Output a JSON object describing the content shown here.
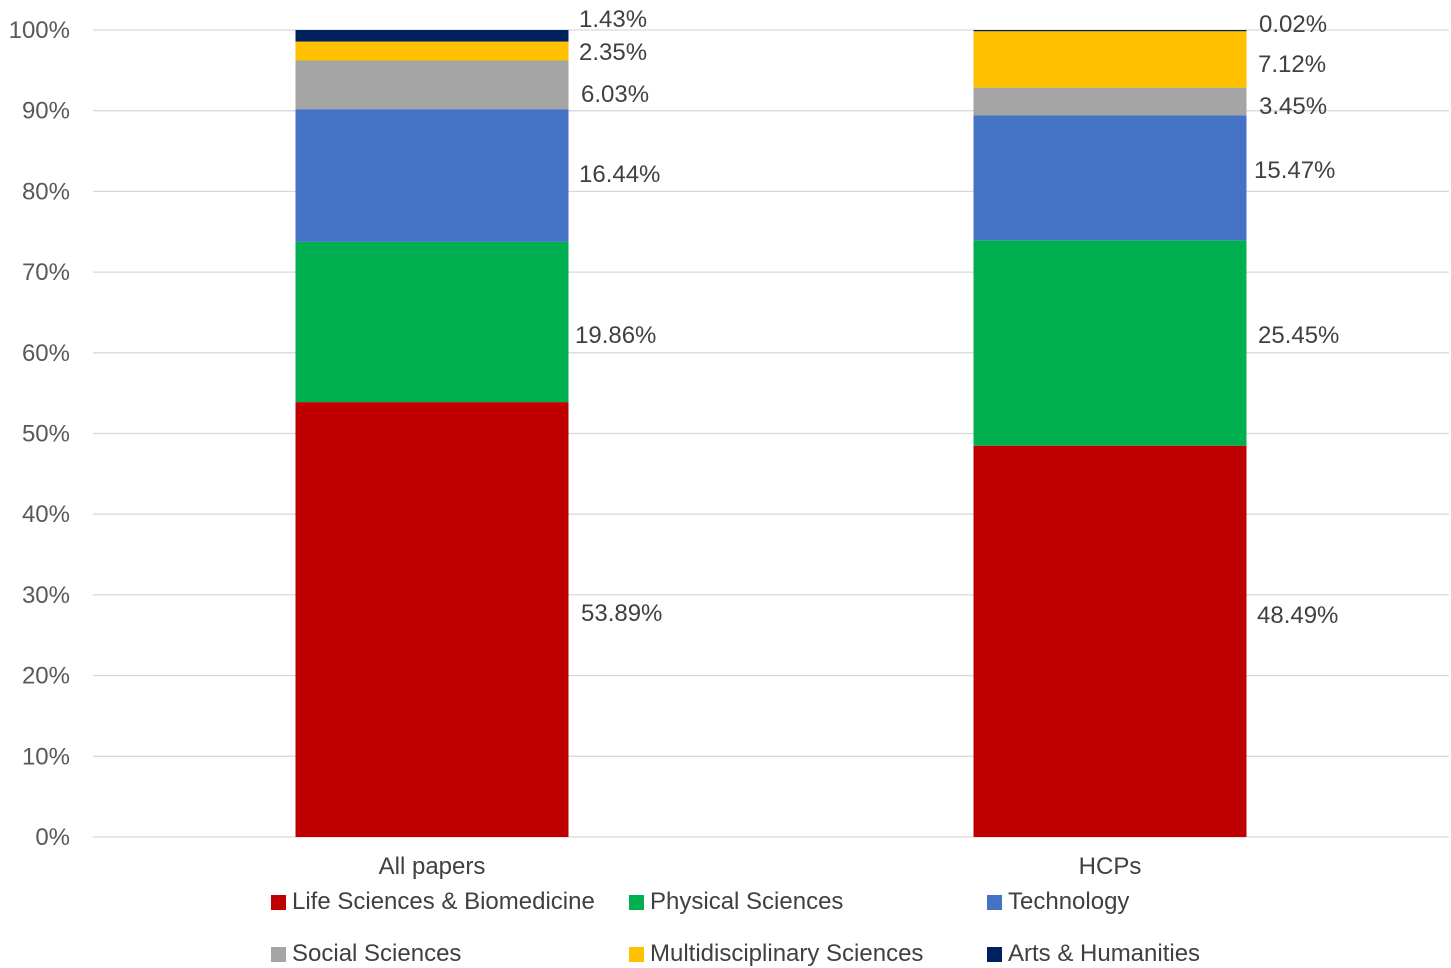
{
  "chart_data": {
    "type": "bar",
    "stacked": true,
    "percent_stacked": true,
    "categories": [
      "All papers",
      "HCPs"
    ],
    "ylim": [
      0,
      100
    ],
    "y_ticks": [
      "0%",
      "10%",
      "20%",
      "30%",
      "40%",
      "50%",
      "60%",
      "70%",
      "80%",
      "90%",
      "100%"
    ],
    "grid": true,
    "legend_position": "bottom",
    "series": [
      {
        "name": "Life Sciences & Biomedicine",
        "color": "#C00000",
        "values": [
          53.89,
          48.49
        ],
        "labels": [
          "53.89%",
          "48.49%"
        ]
      },
      {
        "name": "Physical Sciences",
        "color": "#00B050",
        "values": [
          19.86,
          25.45
        ],
        "labels": [
          "19.86%",
          "25.45%"
        ]
      },
      {
        "name": "Technology",
        "color": "#4472C4",
        "values": [
          16.44,
          15.47
        ],
        "labels": [
          "16.44%",
          "15.47%"
        ]
      },
      {
        "name": "Social Sciences",
        "color": "#A5A5A5",
        "values": [
          6.03,
          3.45
        ],
        "labels": [
          "6.03%",
          "3.45%"
        ]
      },
      {
        "name": "Multidisciplinary Sciences",
        "color": "#FFC000",
        "values": [
          2.35,
          7.12
        ],
        "labels": [
          "2.35%",
          "7.12%"
        ]
      },
      {
        "name": "Arts & Humanities",
        "color": "#002060",
        "values": [
          1.43,
          0.02
        ],
        "labels": [
          "1.43%",
          "0.02%"
        ]
      }
    ]
  }
}
